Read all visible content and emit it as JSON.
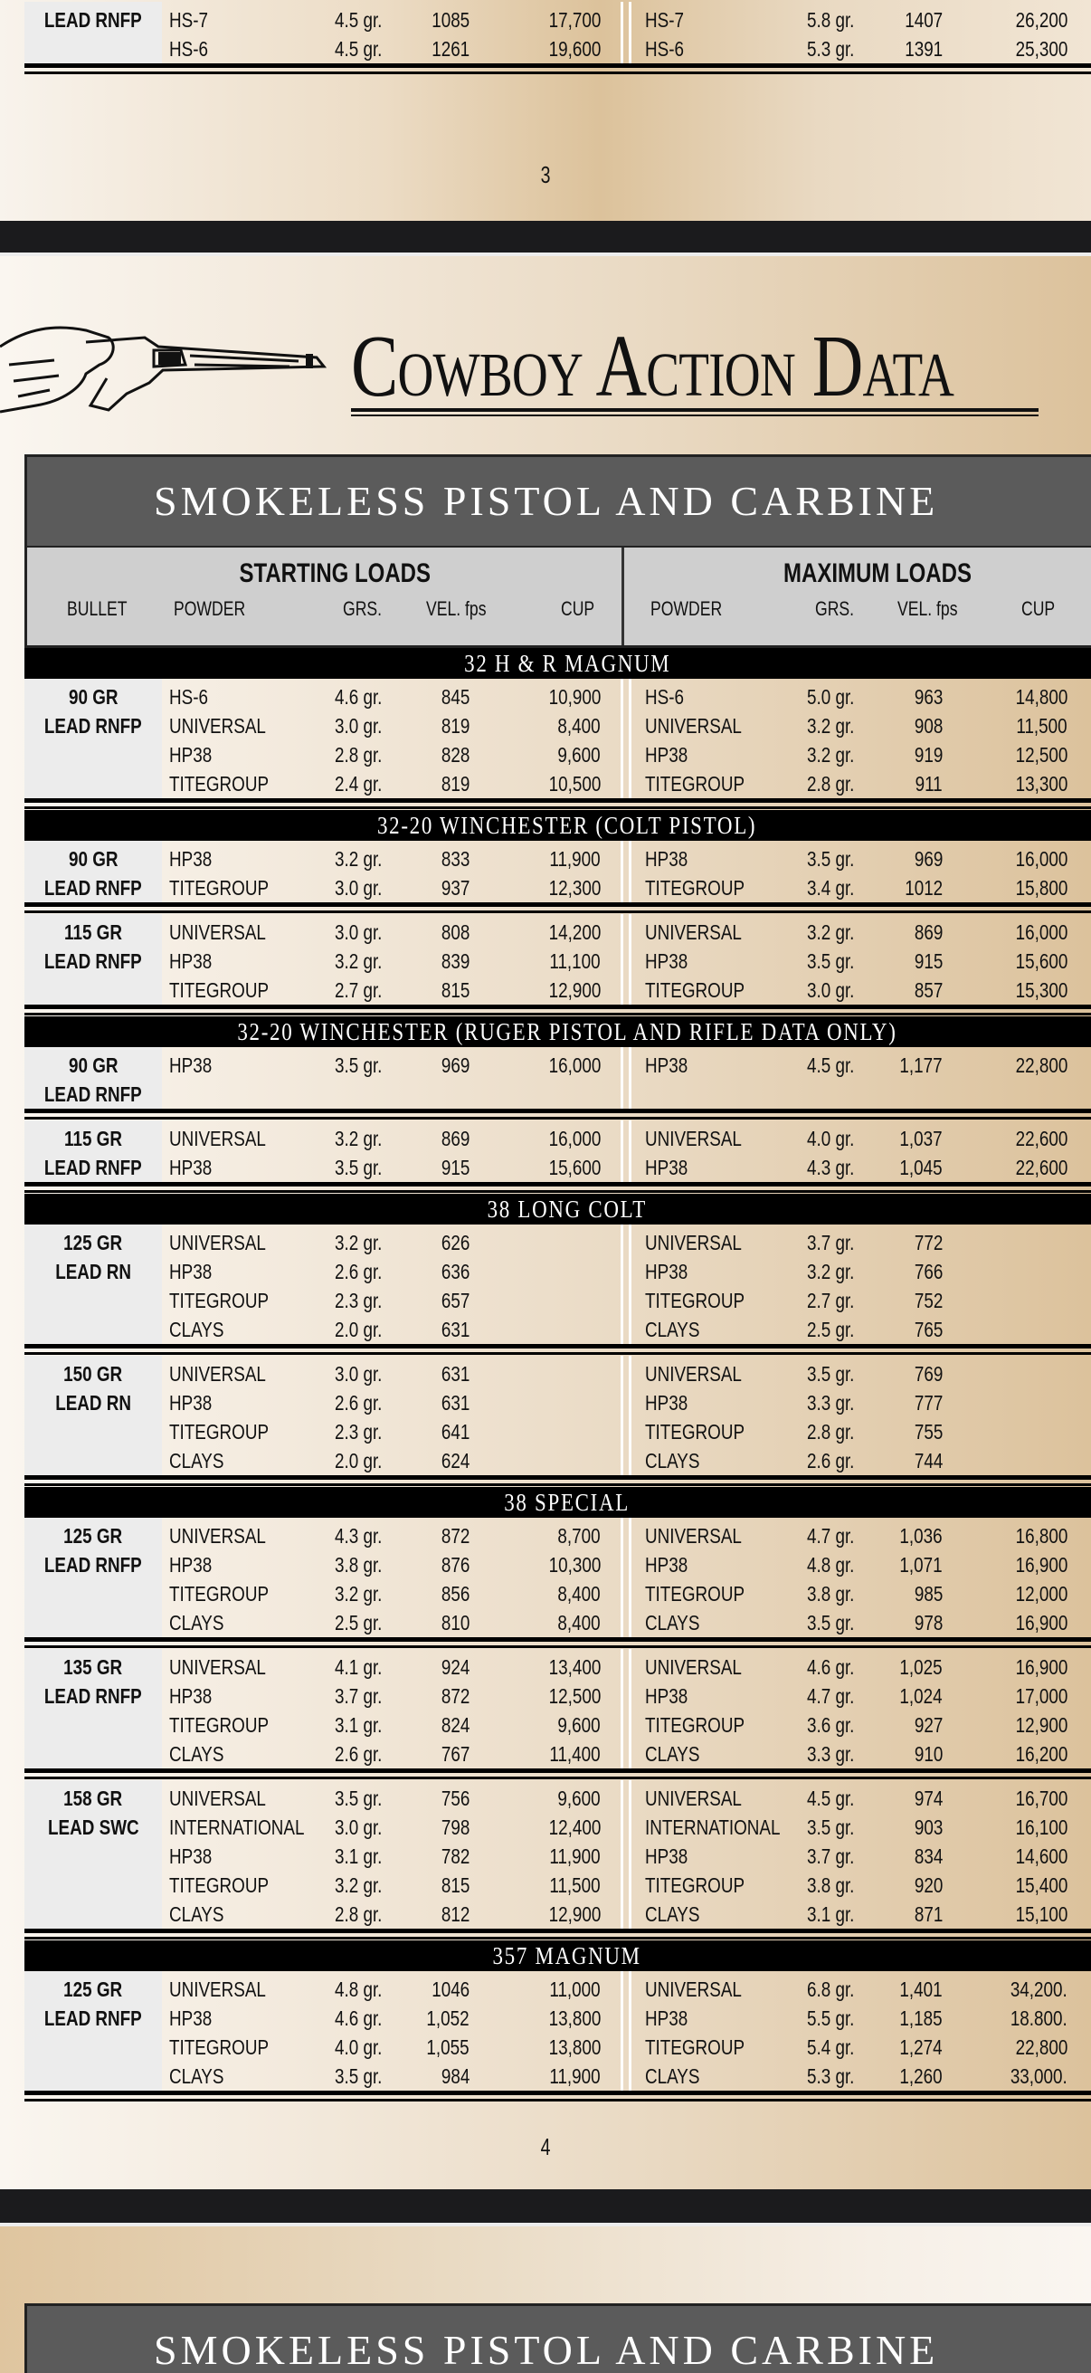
{
  "page3": {
    "page_number": "3",
    "partial_group": {
      "bullet": [
        "LEAD RNFP"
      ],
      "rows": [
        [
          "HS-7",
          "4.5 gr.",
          "1085",
          "17,700",
          "HS-7",
          "5.8 gr.",
          "1407",
          "26,200"
        ],
        [
          "HS-6",
          "4.5 gr.",
          "1261",
          "19,600",
          "HS-6",
          "5.3 gr.",
          "1391",
          "25,300"
        ]
      ]
    }
  },
  "page4": {
    "heading": "Cowboy Action Data",
    "gun_icon": "hand-holding-revolver",
    "table_title": "SMOKELESS PISTOL AND CARBINE",
    "columns": {
      "starting": "STARTING LOADS",
      "maximum": "MAXIMUM LOADS",
      "bullet": "BULLET",
      "powder": "POWDER",
      "grs": "GRS.",
      "vel": "VEL. fps",
      "cup": "CUP"
    },
    "sections": [
      {
        "title": "32 H & R MAGNUM",
        "groups": [
          {
            "bullet": [
              "90 GR",
              "LEAD RNFP"
            ],
            "rows": [
              [
                "HS-6",
                "4.6 gr.",
                "845",
                "10,900",
                "HS-6",
                "5.0 gr.",
                "963",
                "14,800"
              ],
              [
                "UNIVERSAL",
                "3.0 gr.",
                "819",
                "8,400",
                "UNIVERSAL",
                "3.2 gr.",
                "908",
                "11,500"
              ],
              [
                "HP38",
                "2.8 gr.",
                "828",
                "9,600",
                "HP38",
                "3.2 gr.",
                "919",
                "12,500"
              ],
              [
                "TITEGROUP",
                "2.4 gr.",
                "819",
                "10,500",
                "TITEGROUP",
                "2.8 gr.",
                "911",
                "13,300"
              ]
            ]
          }
        ]
      },
      {
        "title": "32-20 WINCHESTER (COLT PISTOL)",
        "groups": [
          {
            "bullet": [
              "90 GR",
              "LEAD RNFP"
            ],
            "rows": [
              [
                "HP38",
                "3.2 gr.",
                "833",
                "11,900",
                "HP38",
                "3.5 gr.",
                "969",
                "16,000"
              ],
              [
                "TITEGROUP",
                "3.0 gr.",
                "937",
                "12,300",
                "TITEGROUP",
                "3.4 gr.",
                "1012",
                "15,800"
              ]
            ]
          },
          {
            "bullet": [
              "115 GR",
              "LEAD RNFP"
            ],
            "rows": [
              [
                "UNIVERSAL",
                "3.0 gr.",
                "808",
                "14,200",
                "UNIVERSAL",
                "3.2 gr.",
                "869",
                "16,000"
              ],
              [
                "HP38",
                "3.2 gr.",
                "839",
                "11,100",
                "HP38",
                "3.5 gr.",
                "915",
                "15,600"
              ],
              [
                "TITEGROUP",
                "2.7 gr.",
                "815",
                "12,900",
                "TITEGROUP",
                "3.0 gr.",
                "857",
                "15,300"
              ]
            ]
          }
        ]
      },
      {
        "title": "32-20 WINCHESTER (RUGER PISTOL AND RIFLE DATA ONLY)",
        "groups": [
          {
            "bullet": [
              "90 GR",
              "LEAD RNFP"
            ],
            "rows": [
              [
                "HP38",
                "3.5 gr.",
                "969",
                "16,000",
                "HP38",
                "4.5 gr.",
                "1,177",
                "22,800"
              ]
            ]
          },
          {
            "bullet": [
              "115 GR",
              "LEAD RNFP"
            ],
            "rows": [
              [
                "UNIVERSAL",
                "3.2 gr.",
                "869",
                "16,000",
                "UNIVERSAL",
                "4.0 gr.",
                "1,037",
                "22,600"
              ],
              [
                "HP38",
                "3.5 gr.",
                "915",
                "15,600",
                "HP38",
                "4.3 gr.",
                "1,045",
                "22,600"
              ]
            ]
          }
        ]
      },
      {
        "title": "38 LONG COLT",
        "groups": [
          {
            "bullet": [
              "125 GR",
              "LEAD RN"
            ],
            "rows": [
              [
                "UNIVERSAL",
                "3.2 gr.",
                "626",
                "",
                "UNIVERSAL",
                "3.7 gr.",
                "772",
                ""
              ],
              [
                "HP38",
                "2.6 gr.",
                "636",
                "",
                "HP38",
                "3.2 gr.",
                "766",
                ""
              ],
              [
                "TITEGROUP",
                "2.3 gr.",
                "657",
                "",
                "TITEGROUP",
                "2.7 gr.",
                "752",
                ""
              ],
              [
                "CLAYS",
                "2.0 gr.",
                "631",
                "",
                "CLAYS",
                "2.5 gr.",
                "765",
                ""
              ]
            ]
          },
          {
            "bullet": [
              "150 GR",
              "LEAD RN"
            ],
            "rows": [
              [
                "UNIVERSAL",
                "3.0 gr.",
                "631",
                "",
                "UNIVERSAL",
                "3.5 gr.",
                "769",
                ""
              ],
              [
                "HP38",
                "2.6 gr.",
                "631",
                "",
                "HP38",
                "3.3 gr.",
                "777",
                ""
              ],
              [
                "TITEGROUP",
                "2.3 gr.",
                "641",
                "",
                "TITEGROUP",
                "2.8 gr.",
                "755",
                ""
              ],
              [
                "CLAYS",
                "2.0 gr.",
                "624",
                "",
                "CLAYS",
                "2.6 gr.",
                "744",
                ""
              ]
            ]
          }
        ]
      },
      {
        "title": "38 SPECIAL",
        "groups": [
          {
            "bullet": [
              "125 GR",
              "LEAD RNFP"
            ],
            "rows": [
              [
                "UNIVERSAL",
                "4.3 gr.",
                "872",
                "8,700",
                "UNIVERSAL",
                "4.7 gr.",
                "1,036",
                "16,800"
              ],
              [
                "HP38",
                "3.8 gr.",
                "876",
                "10,300",
                "HP38",
                "4.8 gr.",
                "1,071",
                "16,900"
              ],
              [
                "TITEGROUP",
                "3.2 gr.",
                "856",
                "8,400",
                "TITEGROUP",
                "3.8 gr.",
                "985",
                "12,000"
              ],
              [
                "CLAYS",
                "2.5 gr.",
                "810",
                "8,400",
                "CLAYS",
                "3.5 gr.",
                "978",
                "16,900"
              ]
            ]
          },
          {
            "bullet": [
              "135 GR",
              "LEAD RNFP"
            ],
            "rows": [
              [
                "UNIVERSAL",
                "4.1 gr.",
                "924",
                "13,400",
                "UNIVERSAL",
                "4.6 gr.",
                "1,025",
                "16,900"
              ],
              [
                "HP38",
                "3.7 gr.",
                "872",
                "12,500",
                "HP38",
                "4.7 gr.",
                "1,024",
                "17,000"
              ],
              [
                "TITEGROUP",
                "3.1 gr.",
                "824",
                "9,600",
                "TITEGROUP",
                "3.6 gr.",
                "927",
                "12,900"
              ],
              [
                "CLAYS",
                "2.6 gr.",
                "767",
                "11,400",
                "CLAYS",
                "3.3 gr.",
                "910",
                "16,200"
              ]
            ]
          },
          {
            "bullet": [
              "158 GR",
              "LEAD SWC"
            ],
            "rows": [
              [
                "UNIVERSAL",
                "3.5 gr.",
                "756",
                "9,600",
                "UNIVERSAL",
                "4.5 gr.",
                "974",
                "16,700"
              ],
              [
                "INTERNATIONAL",
                "3.0 gr.",
                "798",
                "12,400",
                "INTERNATIONAL",
                "3.5 gr.",
                "903",
                "16,100"
              ],
              [
                "HP38",
                "3.1 gr.",
                "782",
                "11,900",
                "HP38",
                "3.7 gr.",
                "834",
                "14,600"
              ],
              [
                "TITEGROUP",
                "3.2 gr.",
                "815",
                "11,500",
                "TITEGROUP",
                "3.8 gr.",
                "920",
                "15,400"
              ],
              [
                "CLAYS",
                "2.8 gr.",
                "812",
                "12,900",
                "CLAYS",
                "3.1 gr.",
                "871",
                "15,100"
              ]
            ]
          }
        ]
      },
      {
        "title": "357 MAGNUM",
        "groups": [
          {
            "bullet": [
              "125 GR",
              "LEAD RNFP"
            ],
            "rows": [
              [
                "UNIVERSAL",
                "4.8 gr.",
                "1046",
                "11,000",
                "UNIVERSAL",
                "6.8 gr.",
                "1,401",
                "34,200."
              ],
              [
                "HP38",
                "4.6 gr.",
                "1,052",
                "13,800",
                "HP38",
                "5.5 gr.",
                "1,185",
                "18.800."
              ],
              [
                "TITEGROUP",
                "4.0 gr.",
                "1,055",
                "13,800",
                "TITEGROUP",
                "5.4 gr.",
                "1,274",
                "22,800"
              ],
              [
                "CLAYS",
                "3.5 gr.",
                "984",
                "11,900",
                "CLAYS",
                "5.3 gr.",
                "1,260",
                "33,000."
              ]
            ]
          }
        ]
      }
    ],
    "page_number": "4"
  },
  "page5": {
    "table_title": "SMOKELESS PISTOL AND CARBINE"
  }
}
